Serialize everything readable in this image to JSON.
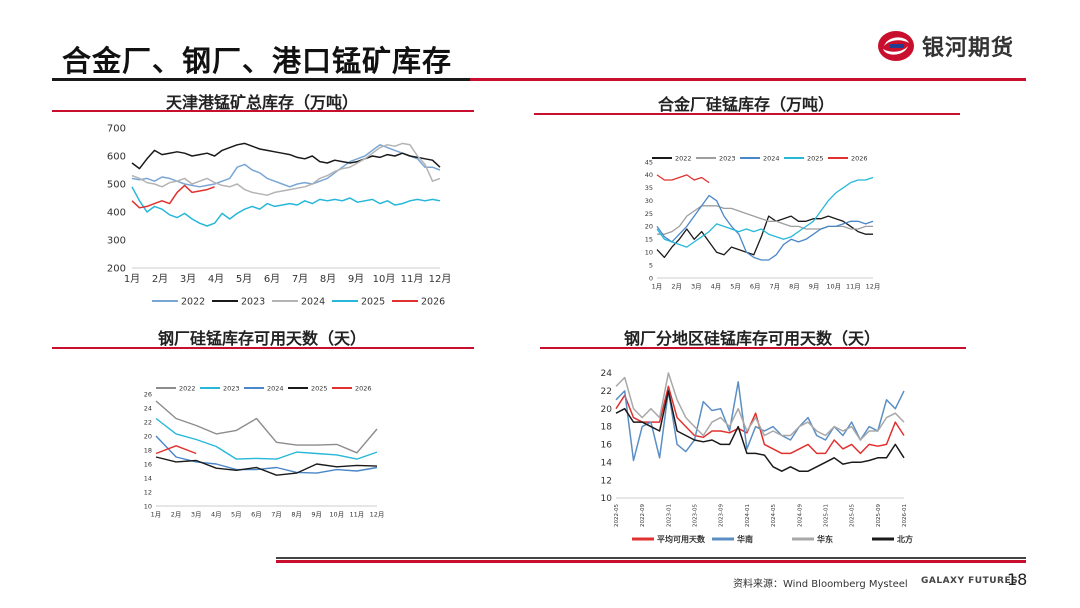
{
  "slide": {
    "title": "合金厂、钢厂、港口锰矿库存",
    "logo_text": "银河期货",
    "source": "资料来源：Wind Bloomberg Mysteel",
    "brand_en": "GALAXY FUTURES",
    "page_number": "18"
  },
  "colors": {
    "accent_red": "#c8102e",
    "s2022": "#7aa6d6",
    "s2023": "#1a1a1a",
    "s2024": "#b4b4b4",
    "s2025": "#26b7d9",
    "s2026": "#e0312f"
  },
  "chart_data": [
    {
      "id": "port",
      "type": "line",
      "title": "天津港锰矿总库存（万吨）",
      "x_labels": [
        "1月",
        "2月",
        "3月",
        "4月",
        "5月",
        "6月",
        "7月",
        "8月",
        "9月",
        "10月",
        "11月",
        "12月"
      ],
      "ylim": [
        200,
        700
      ],
      "y_ticks": [
        200,
        300,
        400,
        500,
        600,
        700
      ],
      "legend": [
        "2022",
        "2023",
        "2024",
        "2025",
        "2026"
      ],
      "series": [
        {
          "name": "2022",
          "color": "#7aa6d6",
          "values": [
            520,
            515,
            520,
            510,
            525,
            520,
            510,
            500,
            495,
            490,
            495,
            500,
            510,
            520,
            560,
            570,
            550,
            540,
            520,
            510,
            500,
            490,
            500,
            505,
            500,
            510,
            520,
            540,
            560,
            580,
            590,
            600,
            620,
            640,
            630,
            620,
            610,
            600,
            590,
            560,
            560,
            550
          ]
        },
        {
          "name": "2023",
          "color": "#1a1a1a",
          "values": [
            575,
            555,
            590,
            620,
            605,
            610,
            615,
            610,
            600,
            605,
            610,
            600,
            620,
            630,
            640,
            645,
            635,
            625,
            620,
            615,
            610,
            605,
            595,
            590,
            600,
            580,
            575,
            585,
            580,
            575,
            580,
            590,
            600,
            595,
            605,
            600,
            610,
            600,
            595,
            590,
            585,
            560
          ]
        },
        {
          "name": "2024",
          "color": "#b4b4b4",
          "values": [
            530,
            520,
            505,
            500,
            490,
            505,
            510,
            520,
            500,
            510,
            520,
            505,
            495,
            490,
            500,
            480,
            470,
            465,
            460,
            470,
            475,
            480,
            485,
            490,
            500,
            520,
            530,
            545,
            555,
            560,
            575,
            590,
            610,
            630,
            640,
            635,
            645,
            640,
            600,
            570,
            510,
            520
          ]
        },
        {
          "name": "2025",
          "color": "#26b7d9",
          "values": [
            490,
            440,
            400,
            420,
            410,
            390,
            380,
            395,
            375,
            360,
            350,
            360,
            395,
            375,
            395,
            410,
            420,
            410,
            430,
            420,
            425,
            430,
            425,
            440,
            430,
            445,
            440,
            445,
            440,
            450,
            435,
            440,
            445,
            430,
            440,
            425,
            430,
            440,
            445,
            440,
            445,
            440
          ]
        },
        {
          "name": "2026",
          "color": "#e0312f",
          "values": [
            440,
            415,
            420,
            430,
            440,
            430,
            470,
            495,
            470,
            475,
            480,
            490
          ]
        }
      ]
    },
    {
      "id": "alloy",
      "type": "line",
      "title": "合金厂硅锰库存（万吨）",
      "x_labels": [
        "1月",
        "2月",
        "3月",
        "4月",
        "5月",
        "6月",
        "7月",
        "8月",
        "9月",
        "10月",
        "11月",
        "12月"
      ],
      "ylim": [
        0,
        45
      ],
      "y_ticks": [
        0,
        5,
        10,
        15,
        20,
        25,
        30,
        35,
        40,
        45
      ],
      "legend": [
        "2022",
        "2023",
        "2024",
        "2025",
        "2026"
      ],
      "series": [
        {
          "name": "2022",
          "color": "#1a1a1a",
          "values": [
            11,
            8,
            12,
            15,
            19,
            15,
            18,
            14,
            10,
            9,
            12,
            11,
            10,
            9,
            16,
            24,
            22,
            23,
            24,
            22,
            22,
            23,
            23,
            24,
            23,
            22,
            20,
            18,
            17,
            17
          ]
        },
        {
          "name": "2023",
          "color": "#9e9e9e",
          "values": [
            17,
            17,
            18,
            20,
            24,
            26,
            28,
            28,
            28,
            27,
            27,
            26,
            25,
            24,
            23,
            22,
            22,
            21,
            20,
            20,
            19,
            19,
            19,
            20,
            20,
            20,
            19,
            19,
            20,
            20
          ]
        },
        {
          "name": "2024",
          "color": "#4a86c8",
          "values": [
            20,
            16,
            14,
            17,
            20,
            24,
            28,
            32,
            30,
            24,
            20,
            17,
            10,
            8,
            7,
            7,
            9,
            13,
            15,
            14,
            15,
            17,
            19,
            20,
            20,
            21,
            22,
            22,
            21,
            22
          ]
        },
        {
          "name": "2025",
          "color": "#26b7d9",
          "values": [
            19,
            15,
            14,
            13,
            12,
            14,
            16,
            18,
            21,
            20,
            19,
            18,
            19,
            18,
            19,
            17,
            16,
            15,
            16,
            18,
            20,
            22,
            26,
            30,
            33,
            35,
            37,
            38,
            38,
            39
          ]
        },
        {
          "name": "2026",
          "color": "#e0312f",
          "values": [
            40,
            38,
            38,
            39,
            40,
            38,
            39,
            37
          ]
        }
      ]
    },
    {
      "id": "days",
      "type": "line",
      "title": "钢厂硅锰库存可用天数（天）",
      "x_labels": [
        "1月",
        "2月",
        "3月",
        "4月",
        "5月",
        "6月",
        "7月",
        "8月",
        "9月",
        "10月",
        "11月",
        "12月"
      ],
      "ylim": [
        10,
        26
      ],
      "y_ticks": [
        10,
        12,
        14,
        16,
        18,
        20,
        22,
        24,
        26
      ],
      "legend": [
        "2022",
        "2023",
        "2024",
        "2025",
        "2026"
      ],
      "series": [
        {
          "name": "2022",
          "color": "#8c8c8c",
          "values": [
            25,
            22.5,
            21.5,
            20.3,
            20.8,
            22.5,
            19.1,
            18.7,
            18.7,
            18.8,
            17.6,
            21
          ]
        },
        {
          "name": "2023",
          "color": "#26b7d9",
          "values": [
            22.5,
            20.3,
            19.5,
            18.5,
            16.7,
            16.8,
            16.7,
            17.7,
            17.5,
            17.3,
            16.7,
            17.7
          ]
        },
        {
          "name": "2024",
          "color": "#4a86c8",
          "values": [
            20,
            17,
            16.3,
            16,
            15.2,
            15.2,
            15.5,
            14.8,
            14.7,
            15.2,
            15,
            15.5
          ]
        },
        {
          "name": "2025",
          "color": "#1a1a1a",
          "values": [
            17,
            16.3,
            16.5,
            15.4,
            15.1,
            15.5,
            14.4,
            14.7,
            16,
            15.6,
            15.8,
            15.7
          ]
        },
        {
          "name": "2026",
          "color": "#e0312f",
          "values": [
            17.5,
            18.6,
            17.5
          ]
        }
      ]
    },
    {
      "id": "region",
      "type": "line",
      "title": "钢厂分地区硅锰库存可用天数（天）",
      "x_labels": [
        "2022-05",
        "2022-09",
        "2023-01",
        "2023-05",
        "2023-09",
        "2024-01",
        "2024-05",
        "2024-09",
        "2025-01",
        "2025-05",
        "2025-09",
        "2026-01"
      ],
      "ylim": [
        10,
        24
      ],
      "y_ticks": [
        10,
        12,
        14,
        16,
        18,
        20,
        22,
        24
      ],
      "legend": [
        "平均可用天数",
        "华南",
        "华东",
        "北方"
      ],
      "series": [
        {
          "name": "平均可用天数",
          "color": "#e0312f",
          "values": [
            20,
            21.5,
            19,
            18.5,
            18.5,
            18.5,
            22.5,
            19,
            18,
            17,
            16.8,
            17.5,
            17.5,
            17.3,
            17.8,
            17.3,
            19.5,
            16,
            15.5,
            15,
            15,
            15.5,
            16,
            15,
            15,
            16.5,
            15.5,
            16,
            15,
            16,
            15.8,
            16,
            18.5,
            17
          ]
        },
        {
          "name": "华南",
          "color": "#5b8fc4",
          "values": [
            21,
            22,
            14.2,
            18,
            18.5,
            14.5,
            22,
            16,
            15.2,
            16.5,
            20.8,
            19.8,
            20,
            17.5,
            23,
            15.5,
            18,
            17.5,
            18,
            17,
            16.5,
            18,
            19,
            17,
            16.5,
            18,
            17,
            18.5,
            16.5,
            18,
            17.5,
            21,
            20,
            22
          ]
        },
        {
          "name": "华东",
          "color": "#a8a8a8",
          "values": [
            22.5,
            23.5,
            20,
            19,
            20,
            19,
            24,
            21,
            19,
            18,
            17,
            18.5,
            19,
            18,
            20,
            17.5,
            19,
            17,
            17.5,
            17,
            17,
            18,
            18.5,
            17.5,
            17,
            18,
            17.5,
            18,
            16.5,
            17.5,
            17.5,
            19,
            19.5,
            18.5
          ]
        },
        {
          "name": "北方",
          "color": "#1a1a1a",
          "values": [
            19.5,
            20,
            18.5,
            18.5,
            18,
            17.5,
            22,
            17.5,
            17,
            16.5,
            16.3,
            16.5,
            16,
            16,
            18,
            15,
            15,
            14.8,
            13.5,
            13,
            13.5,
            13,
            13,
            13.5,
            14,
            14.5,
            13.8,
            14,
            14,
            14.2,
            14.5,
            14.5,
            16,
            14.5
          ]
        }
      ]
    }
  ]
}
